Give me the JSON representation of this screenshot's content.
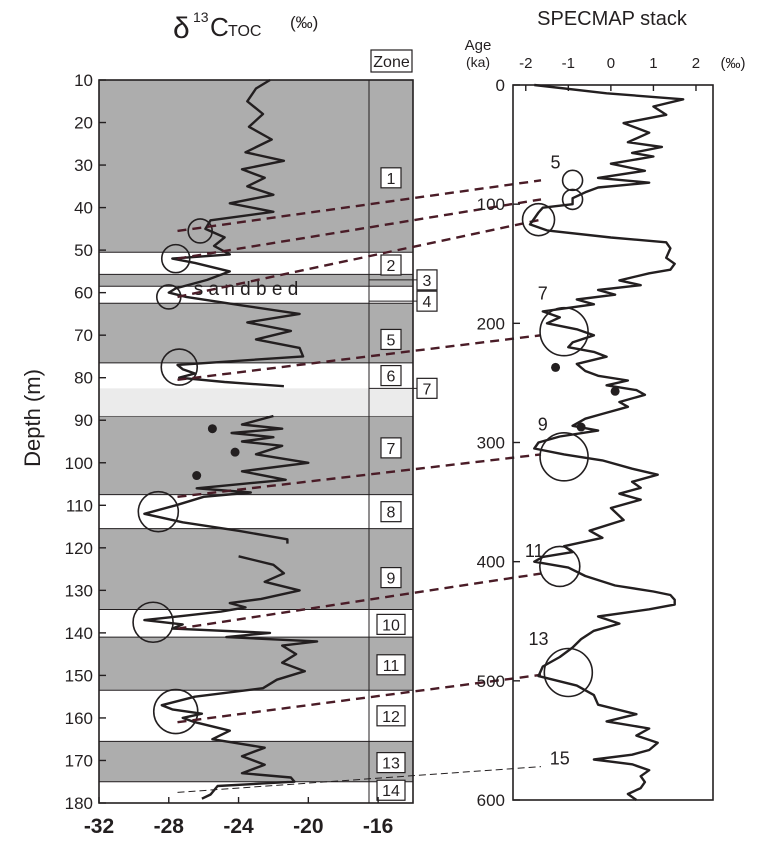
{
  "left_panel": {
    "title_delta": "δ",
    "title_sup": "13",
    "title_c": "C",
    "title_sub": "TOC",
    "title_units": "(‰)",
    "zone_header": "Zone",
    "ylabel": "Depth (m)",
    "sand_bed_label": "s a n d   b e d"
  },
  "right_panel": {
    "title": "SPECMAP stack",
    "age_label_line1": "Age",
    "age_label_line2": "(ka)",
    "units_label": "(‰)"
  },
  "chart_data": [
    {
      "type": "line",
      "title": "δ13C TOC (‰)",
      "ylabel": "Depth (m)",
      "xlim": [
        -32,
        -14
      ],
      "ylim": [
        10,
        180
      ],
      "y_inverted": true,
      "xticks": [
        -32,
        -28,
        -24,
        -20,
        -16
      ],
      "xtick_labels": [
        "-32",
        "-28",
        "-24",
        "-20",
        "-16"
      ],
      "yticks": [
        10,
        20,
        30,
        40,
        50,
        60,
        70,
        80,
        90,
        100,
        110,
        120,
        130,
        140,
        150,
        160,
        170,
        180
      ],
      "ytick_labels": [
        "10",
        "20",
        "30",
        "40",
        "50",
        "60",
        "70",
        "80",
        "90",
        "100",
        "110",
        "120",
        "130",
        "140",
        "150",
        "160",
        "170",
        "180"
      ],
      "series": [
        {
          "depth": [
            10,
            12,
            15,
            18,
            21,
            24,
            27,
            29,
            31,
            33,
            35,
            37,
            39,
            41,
            43,
            45,
            47,
            49,
            51,
            52,
            53,
            55,
            57,
            59,
            60,
            61,
            63,
            65,
            67,
            69,
            71,
            73,
            75,
            77,
            78,
            79,
            80,
            81,
            82
          ],
          "d13c": [
            -22.2,
            -23,
            -23.5,
            -22.6,
            -23.4,
            -22.1,
            -23.6,
            -21.4,
            -23.8,
            -22.5,
            -23.5,
            -22,
            -24.5,
            -22,
            -25.6,
            -25.9,
            -24.8,
            -25.4,
            -24.5,
            -27.8,
            -26.5,
            -24.5,
            -25.8,
            -27.6,
            -28,
            -27,
            -23.8,
            -20.5,
            -23.5,
            -21,
            -23,
            -20.5,
            -20.3,
            -27.5,
            -27.2,
            -26.5,
            -27.4,
            -24.8,
            -21.4
          ]
        },
        {
          "depth": [
            89,
            91,
            92,
            93,
            94,
            95,
            96,
            98,
            100,
            102,
            104,
            106,
            107,
            108,
            110,
            112,
            114,
            116,
            118,
            119
          ],
          "d13c": [
            -22,
            -23.8,
            -21.5,
            -24.4,
            -22,
            -23.8,
            -21.5,
            -23,
            -20,
            -23.8,
            -21.3,
            -26.4,
            -23.3,
            -26,
            -27.6,
            -29.4,
            -27.2,
            -24,
            -21.2,
            -21.2
          ]
        },
        {
          "depth": [
            122,
            124,
            126,
            128,
            130,
            132,
            133,
            134,
            135,
            136,
            137,
            138,
            139,
            140,
            141,
            142,
            143,
            145,
            147,
            149,
            151,
            153,
            155,
            157,
            158,
            159,
            160,
            161,
            162,
            163,
            165,
            167,
            169,
            171,
            173,
            174,
            175,
            176,
            178,
            179
          ],
          "d13c": [
            -24,
            -22,
            -21.4,
            -22.5,
            -20.5,
            -22.7,
            -24.5,
            -23.6,
            -25,
            -27.2,
            -29.4,
            -27.2,
            -27.8,
            -22.2,
            -24.7,
            -19.5,
            -21.5,
            -20.7,
            -21.5,
            -20.2,
            -21.8,
            -22.6,
            -26.5,
            -28.4,
            -27.8,
            -26.1,
            -27.2,
            -26.5,
            -25.5,
            -24.5,
            -25.5,
            -22.5,
            -23.8,
            -22.5,
            -23.8,
            -21,
            -20.8,
            -25.2,
            -25.6,
            -26.1
          ]
        }
      ],
      "points": [
        {
          "d13c": -25.5,
          "depth": 92
        },
        {
          "d13c": -24.2,
          "depth": 97.5
        },
        {
          "d13c": -26.4,
          "depth": 103
        }
      ],
      "circles": [
        {
          "d13c": -26.2,
          "depth": 45.5
        },
        {
          "d13c": -27.6,
          "depth": 52
        },
        {
          "d13c": -28,
          "depth": 61
        },
        {
          "d13c": -27.4,
          "depth": 77.5
        },
        {
          "d13c": -28.6,
          "depth": 111.5
        },
        {
          "d13c": -28.9,
          "depth": 137.5
        },
        {
          "d13c": -27.6,
          "depth": 158.5
        }
      ],
      "shaded_bands": [
        [
          10,
          50.5
        ],
        [
          55.7,
          58.5
        ],
        [
          62.5,
          76.5
        ],
        [
          89,
          107.5
        ],
        [
          115.5,
          134.5
        ],
        [
          141,
          153.5
        ],
        [
          165.5,
          175
        ]
      ],
      "sand_bed": [
        82.5,
        89
      ],
      "zones": [
        {
          "label": "1",
          "depth": 33
        },
        {
          "label": "2",
          "depth": 53.5
        },
        {
          "label": "3",
          "depth": 57,
          "external": true
        },
        {
          "label": "4",
          "depth": 62,
          "external": true
        },
        {
          "label": "5",
          "depth": 71
        },
        {
          "label": "6",
          "depth": 79.5
        },
        {
          "label": "7",
          "depth": 82.5,
          "external": true
        },
        {
          "label": "7",
          "depth": 96.5
        },
        {
          "label": "8",
          "depth": 111.5
        },
        {
          "label": "9",
          "depth": 127
        },
        {
          "label": "10",
          "depth": 138
        },
        {
          "label": "11",
          "depth": 147.5
        },
        {
          "label": "12",
          "depth": 159.5
        },
        {
          "label": "13",
          "depth": 170.5
        },
        {
          "label": "14",
          "depth": 177
        }
      ]
    },
    {
      "type": "line",
      "title": "SPECMAP stack",
      "ylabel": "Age (ka)",
      "xlabel": "(‰)",
      "xlim": [
        -2.3,
        2.4
      ],
      "ylim": [
        0,
        600
      ],
      "y_inverted": true,
      "xticks": [
        -2,
        -1,
        0,
        1,
        2
      ],
      "xtick_labels": [
        "-2",
        "-1",
        "0",
        "1",
        "2"
      ],
      "yticks": [
        0,
        100,
        200,
        300,
        400,
        500,
        600
      ],
      "ytick_labels": [
        "0",
        "100",
        "200",
        "300",
        "400",
        "500",
        "600"
      ],
      "series": [
        {
          "age": [
            0,
            7,
            12,
            18,
            25,
            32,
            40,
            48,
            52,
            57,
            60,
            66,
            72,
            78,
            82,
            86,
            90,
            95,
            100,
            103,
            107,
            112,
            117,
            122,
            128,
            132,
            137,
            145,
            150,
            155,
            158,
            164,
            168,
            172,
            176,
            180,
            184,
            190,
            195,
            200,
            205,
            210,
            216,
            220,
            224,
            228,
            234,
            240,
            244,
            248,
            252,
            256,
            260,
            266,
            270,
            276,
            280,
            286,
            290,
            295,
            300,
            305,
            310,
            315,
            322,
            327,
            333,
            338,
            343,
            348,
            355,
            365,
            374,
            380,
            387,
            392,
            396,
            400,
            405,
            412,
            420,
            425,
            428,
            432,
            436,
            440,
            446,
            452,
            458,
            465,
            472,
            480,
            488,
            496,
            504,
            512,
            520,
            528,
            534,
            540,
            546,
            552,
            558,
            562,
            566,
            570,
            575,
            580,
            585,
            590,
            595,
            600
          ],
          "value": [
            -1.8,
            -0.1,
            1.7,
            1,
            1.3,
            0.3,
            0.9,
            0.4,
            1.2,
            0.5,
            1,
            0,
            0.8,
            -0.3,
            0.9,
            -0.3,
            -0.6,
            -0.9,
            -0.9,
            -1.6,
            -1.7,
            -1.8,
            -1.9,
            -1.5,
            0,
            1.3,
            1.4,
            1.3,
            1.5,
            1.4,
            0.9,
            0.2,
            0.7,
            -0.3,
            0.1,
            -0.8,
            -0.4,
            -1.6,
            -1.2,
            -1.5,
            -0.8,
            -0.4,
            -0.9,
            -1,
            -0.4,
            -0.1,
            -0.8,
            -0.6,
            -0.3,
            0.4,
            -0.1,
            0.6,
            0.8,
            0.2,
            0.4,
            -0.2,
            -0.6,
            -0.9,
            -0.3,
            -1.2,
            -1.7,
            -1.8,
            -1.1,
            -0.2,
            0.5,
            1.1,
            0.5,
            0.7,
            0.2,
            0.7,
            0,
            0.3,
            -0.5,
            -0.2,
            -1.1,
            -0.9,
            -1.6,
            -1.8,
            -1,
            -0.6,
            0.1,
            1,
            1.4,
            1.5,
            1.5,
            0.9,
            -0.3,
            0.2,
            -0.4,
            -0.7,
            -0.9,
            -1.2,
            -1.6,
            -1.7,
            -0.8,
            -0.4,
            -0.3,
            0.6,
            -0.1,
            0.9,
            0.6,
            1.1,
            0.9,
            0.5,
            -0.4,
            0.5,
            0.9,
            0.7,
            0.8,
            0.7,
            0.4,
            0.6
          ]
        }
      ],
      "points": [
        {
          "value": -1.3,
          "age": 237
        },
        {
          "value": 0.1,
          "age": 257
        },
        {
          "value": -0.7,
          "age": 287
        }
      ],
      "circles": [
        {
          "value": -0.9,
          "age": 80
        },
        {
          "value": -0.9,
          "age": 96
        },
        {
          "value": -1.7,
          "age": 113
        },
        {
          "value": -1.1,
          "age": 207
        },
        {
          "value": -1.1,
          "age": 312
        },
        {
          "value": -1.2,
          "age": 404
        },
        {
          "value": -1.0,
          "age": 493
        }
      ],
      "stage_labels": [
        {
          "label": "5",
          "value": -1.3,
          "age": 70
        },
        {
          "label": "7",
          "value": -1.6,
          "age": 180
        },
        {
          "label": "9",
          "value": -1.6,
          "age": 290
        },
        {
          "label": "11",
          "value": -1.8,
          "age": 396
        },
        {
          "label": "13",
          "value": -1.7,
          "age": 470
        },
        {
          "label": "15",
          "value": -1.2,
          "age": 570
        }
      ],
      "correlation_lines": [
        {
          "from_depth": 45.5,
          "to_age": 80
        },
        {
          "from_depth": 52,
          "to_age": 96
        },
        {
          "from_depth": 61,
          "to_age": 113
        },
        {
          "from_depth": 80.5,
          "to_age": 210
        },
        {
          "from_depth": 108,
          "to_age": 310
        },
        {
          "from_depth": 139,
          "to_age": 410
        },
        {
          "from_depth": 161,
          "to_age": 495
        },
        {
          "from_depth": 177.5,
          "to_age": 572
        }
      ]
    }
  ]
}
